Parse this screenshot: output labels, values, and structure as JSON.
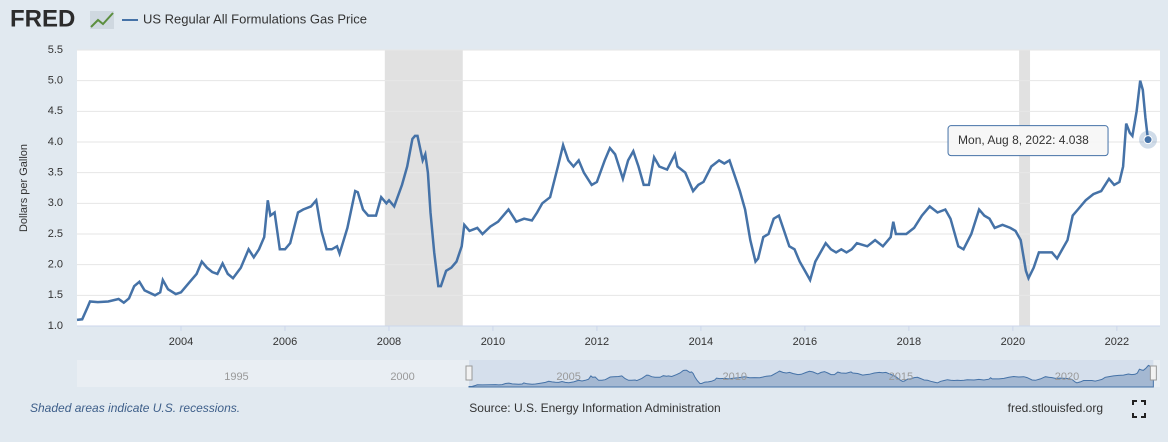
{
  "header": {
    "logo": "FRED"
  },
  "chart_data": {
    "type": "line",
    "y_label": "Dollars per Gallon",
    "x": [
      2002.0,
      2002.1,
      2002.2,
      2002.25,
      2002.4,
      2002.6,
      2002.8,
      2002.9,
      2003.0,
      2003.1,
      2003.2,
      2003.3,
      2003.5,
      2003.6,
      2003.65,
      2003.75,
      2003.9,
      2004.0,
      2004.15,
      2004.3,
      2004.4,
      2004.5,
      2004.6,
      2004.7,
      2004.8,
      2004.9,
      2005.0,
      2005.15,
      2005.3,
      2005.4,
      2005.5,
      2005.6,
      2005.67,
      2005.72,
      2005.8,
      2005.9,
      2006.0,
      2006.1,
      2006.25,
      2006.35,
      2006.5,
      2006.6,
      2006.7,
      2006.8,
      2006.9,
      2007.0,
      2007.05,
      2007.2,
      2007.35,
      2007.4,
      2007.5,
      2007.6,
      2007.75,
      2007.85,
      2007.95,
      2008.0,
      2008.1,
      2008.25,
      2008.35,
      2008.45,
      2008.5,
      2008.55,
      2008.65,
      2008.7,
      2008.75,
      2008.8,
      2008.87,
      2008.95,
      2009.0,
      2009.1,
      2009.2,
      2009.3,
      2009.4,
      2009.45,
      2009.55,
      2009.7,
      2009.8,
      2009.95,
      2010.1,
      2010.2,
      2010.3,
      2010.45,
      2010.6,
      2010.75,
      2010.85,
      2010.95,
      2011.1,
      2011.25,
      2011.35,
      2011.45,
      2011.55,
      2011.65,
      2011.75,
      2011.9,
      2012.0,
      2012.15,
      2012.25,
      2012.35,
      2012.5,
      2012.6,
      2012.7,
      2012.8,
      2012.9,
      2013.0,
      2013.1,
      2013.2,
      2013.35,
      2013.5,
      2013.55,
      2013.7,
      2013.85,
      2013.95,
      2014.05,
      2014.2,
      2014.35,
      2014.45,
      2014.55,
      2014.65,
      2014.75,
      2014.85,
      2014.95,
      2015.05,
      2015.1,
      2015.2,
      2015.3,
      2015.4,
      2015.5,
      2015.6,
      2015.7,
      2015.8,
      2015.9,
      2016.0,
      2016.1,
      2016.2,
      2016.3,
      2016.4,
      2016.5,
      2016.6,
      2016.7,
      2016.8,
      2016.9,
      2017.0,
      2017.2,
      2017.35,
      2017.5,
      2017.65,
      2017.7,
      2017.75,
      2017.85,
      2017.95,
      2018.1,
      2018.25,
      2018.4,
      2018.55,
      2018.7,
      2018.8,
      2018.95,
      2019.05,
      2019.2,
      2019.35,
      2019.45,
      2019.55,
      2019.65,
      2019.8,
      2019.95,
      2020.05,
      2020.15,
      2020.25,
      2020.3,
      2020.4,
      2020.5,
      2020.6,
      2020.75,
      2020.85,
      2020.95,
      2021.05,
      2021.15,
      2021.25,
      2021.4,
      2021.55,
      2021.7,
      2021.85,
      2021.95,
      2022.05,
      2022.12,
      2022.18,
      2022.25,
      2022.3,
      2022.38,
      2022.45,
      2022.5,
      2022.55,
      2022.6
    ],
    "series": [
      {
        "name": "US Regular All Formulations Gas Price",
        "color": "#4572a7",
        "values": [
          1.1,
          1.11,
          1.3,
          1.4,
          1.39,
          1.4,
          1.44,
          1.38,
          1.45,
          1.65,
          1.72,
          1.58,
          1.5,
          1.55,
          1.75,
          1.6,
          1.52,
          1.55,
          1.7,
          1.85,
          2.05,
          1.95,
          1.88,
          1.85,
          2.02,
          1.85,
          1.78,
          1.95,
          2.25,
          2.12,
          2.25,
          2.45,
          3.05,
          2.8,
          2.85,
          2.25,
          2.25,
          2.35,
          2.85,
          2.9,
          2.95,
          3.05,
          2.55,
          2.25,
          2.25,
          2.3,
          2.18,
          2.6,
          3.2,
          3.18,
          2.9,
          2.8,
          2.8,
          3.1,
          3.0,
          3.05,
          2.95,
          3.3,
          3.6,
          4.05,
          4.1,
          4.1,
          3.7,
          3.8,
          3.5,
          2.85,
          2.2,
          1.65,
          1.65,
          1.9,
          1.95,
          2.05,
          2.3,
          2.65,
          2.55,
          2.6,
          2.5,
          2.62,
          2.7,
          2.8,
          2.9,
          2.7,
          2.75,
          2.72,
          2.85,
          3.0,
          3.1,
          3.6,
          3.95,
          3.7,
          3.6,
          3.7,
          3.5,
          3.3,
          3.35,
          3.7,
          3.9,
          3.8,
          3.4,
          3.7,
          3.85,
          3.6,
          3.3,
          3.3,
          3.75,
          3.6,
          3.55,
          3.8,
          3.6,
          3.5,
          3.2,
          3.3,
          3.35,
          3.6,
          3.7,
          3.65,
          3.7,
          3.45,
          3.2,
          2.9,
          2.4,
          2.05,
          2.1,
          2.45,
          2.5,
          2.75,
          2.8,
          2.55,
          2.3,
          2.25,
          2.05,
          1.9,
          1.75,
          2.05,
          2.2,
          2.35,
          2.25,
          2.2,
          2.25,
          2.2,
          2.25,
          2.35,
          2.3,
          2.4,
          2.3,
          2.45,
          2.7,
          2.5,
          2.5,
          2.5,
          2.6,
          2.8,
          2.95,
          2.85,
          2.9,
          2.75,
          2.3,
          2.25,
          2.5,
          2.9,
          2.8,
          2.75,
          2.6,
          2.65,
          2.6,
          2.55,
          2.4,
          1.9,
          1.78,
          1.95,
          2.2,
          2.2,
          2.2,
          2.1,
          2.25,
          2.4,
          2.8,
          2.9,
          3.05,
          3.15,
          3.2,
          3.4,
          3.3,
          3.35,
          3.6,
          4.3,
          4.15,
          4.1,
          4.5,
          5.0,
          4.85,
          4.4,
          4.038
        ]
      }
    ],
    "xlim": [
      2002.0,
      2022.83
    ],
    "xticks": [
      2004,
      2006,
      2008,
      2010,
      2012,
      2014,
      2016,
      2018,
      2020,
      2022
    ],
    "ylim": [
      1,
      5.5
    ],
    "yticks": [
      {
        "value": 1,
        "label": "1.0"
      },
      1.5,
      {
        "value": 2,
        "label": "2.0"
      },
      2.5,
      {
        "value": 3,
        "label": "3.0"
      },
      3.5,
      {
        "value": 4,
        "label": "4.0"
      },
      4.5,
      {
        "value": 5,
        "label": "5.0"
      },
      5.5
    ],
    "recessions": [
      [
        2007.92,
        2009.42
      ],
      [
        2020.12,
        2020.33
      ]
    ],
    "tooltip": "Mon, Aug 8, 2022: 4.038",
    "navigator": {
      "xlim": [
        1990.2,
        2022.8
      ],
      "xticks": [
        1995,
        2000,
        2005,
        2010,
        2015,
        2020
      ]
    }
  },
  "footer": {
    "note": "Shaded areas indicate U.S. recessions.",
    "source": "Source: U.S. Energy Information Administration",
    "site": "fred.stlouisfed.org"
  }
}
